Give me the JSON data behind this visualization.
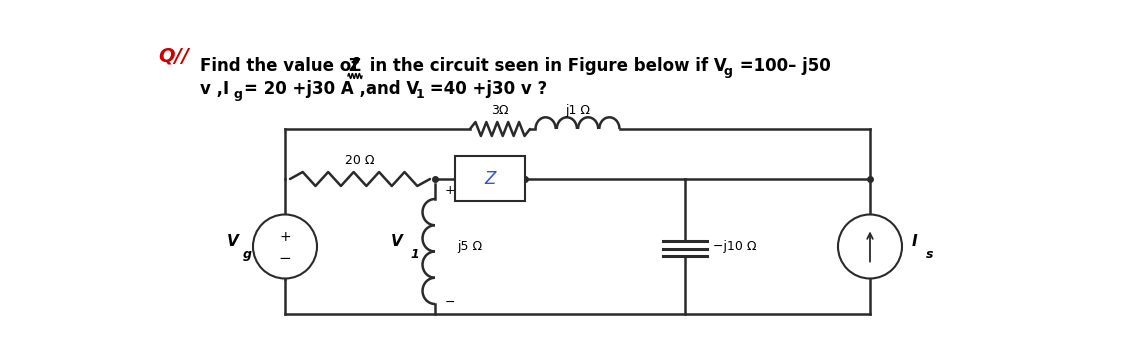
{
  "bg_color": "#ffffff",
  "Qll_label": "Q//",
  "circuit_line_color": "#2a2a2a",
  "resistor_label_20": "20 Ω",
  "resistor_label_3": "3Ω",
  "inductor_label_j1": "j1 Ω",
  "Z_label": "Z",
  "j5_label": "j5 Ω",
  "j10_label": "−j10 Ω",
  "Vg_label": "V",
  "Vg_sub": "g",
  "V1_label": "V",
  "V1_sub": "1",
  "Ig_label": "I",
  "Ig_sub": "s",
  "plus_label": "+",
  "minus_label": "−",
  "line1_prefix": "Find the value of ",
  "line1_Z": "Z",
  "line1_suffix": " in the circuit seen in Figure below if V",
  "line1_Vgsub": "g",
  "line1_end": " =100– j50",
  "line2_prefix": "v ,I",
  "line2_Igsub": "g",
  "line2_mid": "= 20 +j30 A ,and V",
  "line2_V1sub": "1",
  "line2_end": " =40 +j30 v ?"
}
